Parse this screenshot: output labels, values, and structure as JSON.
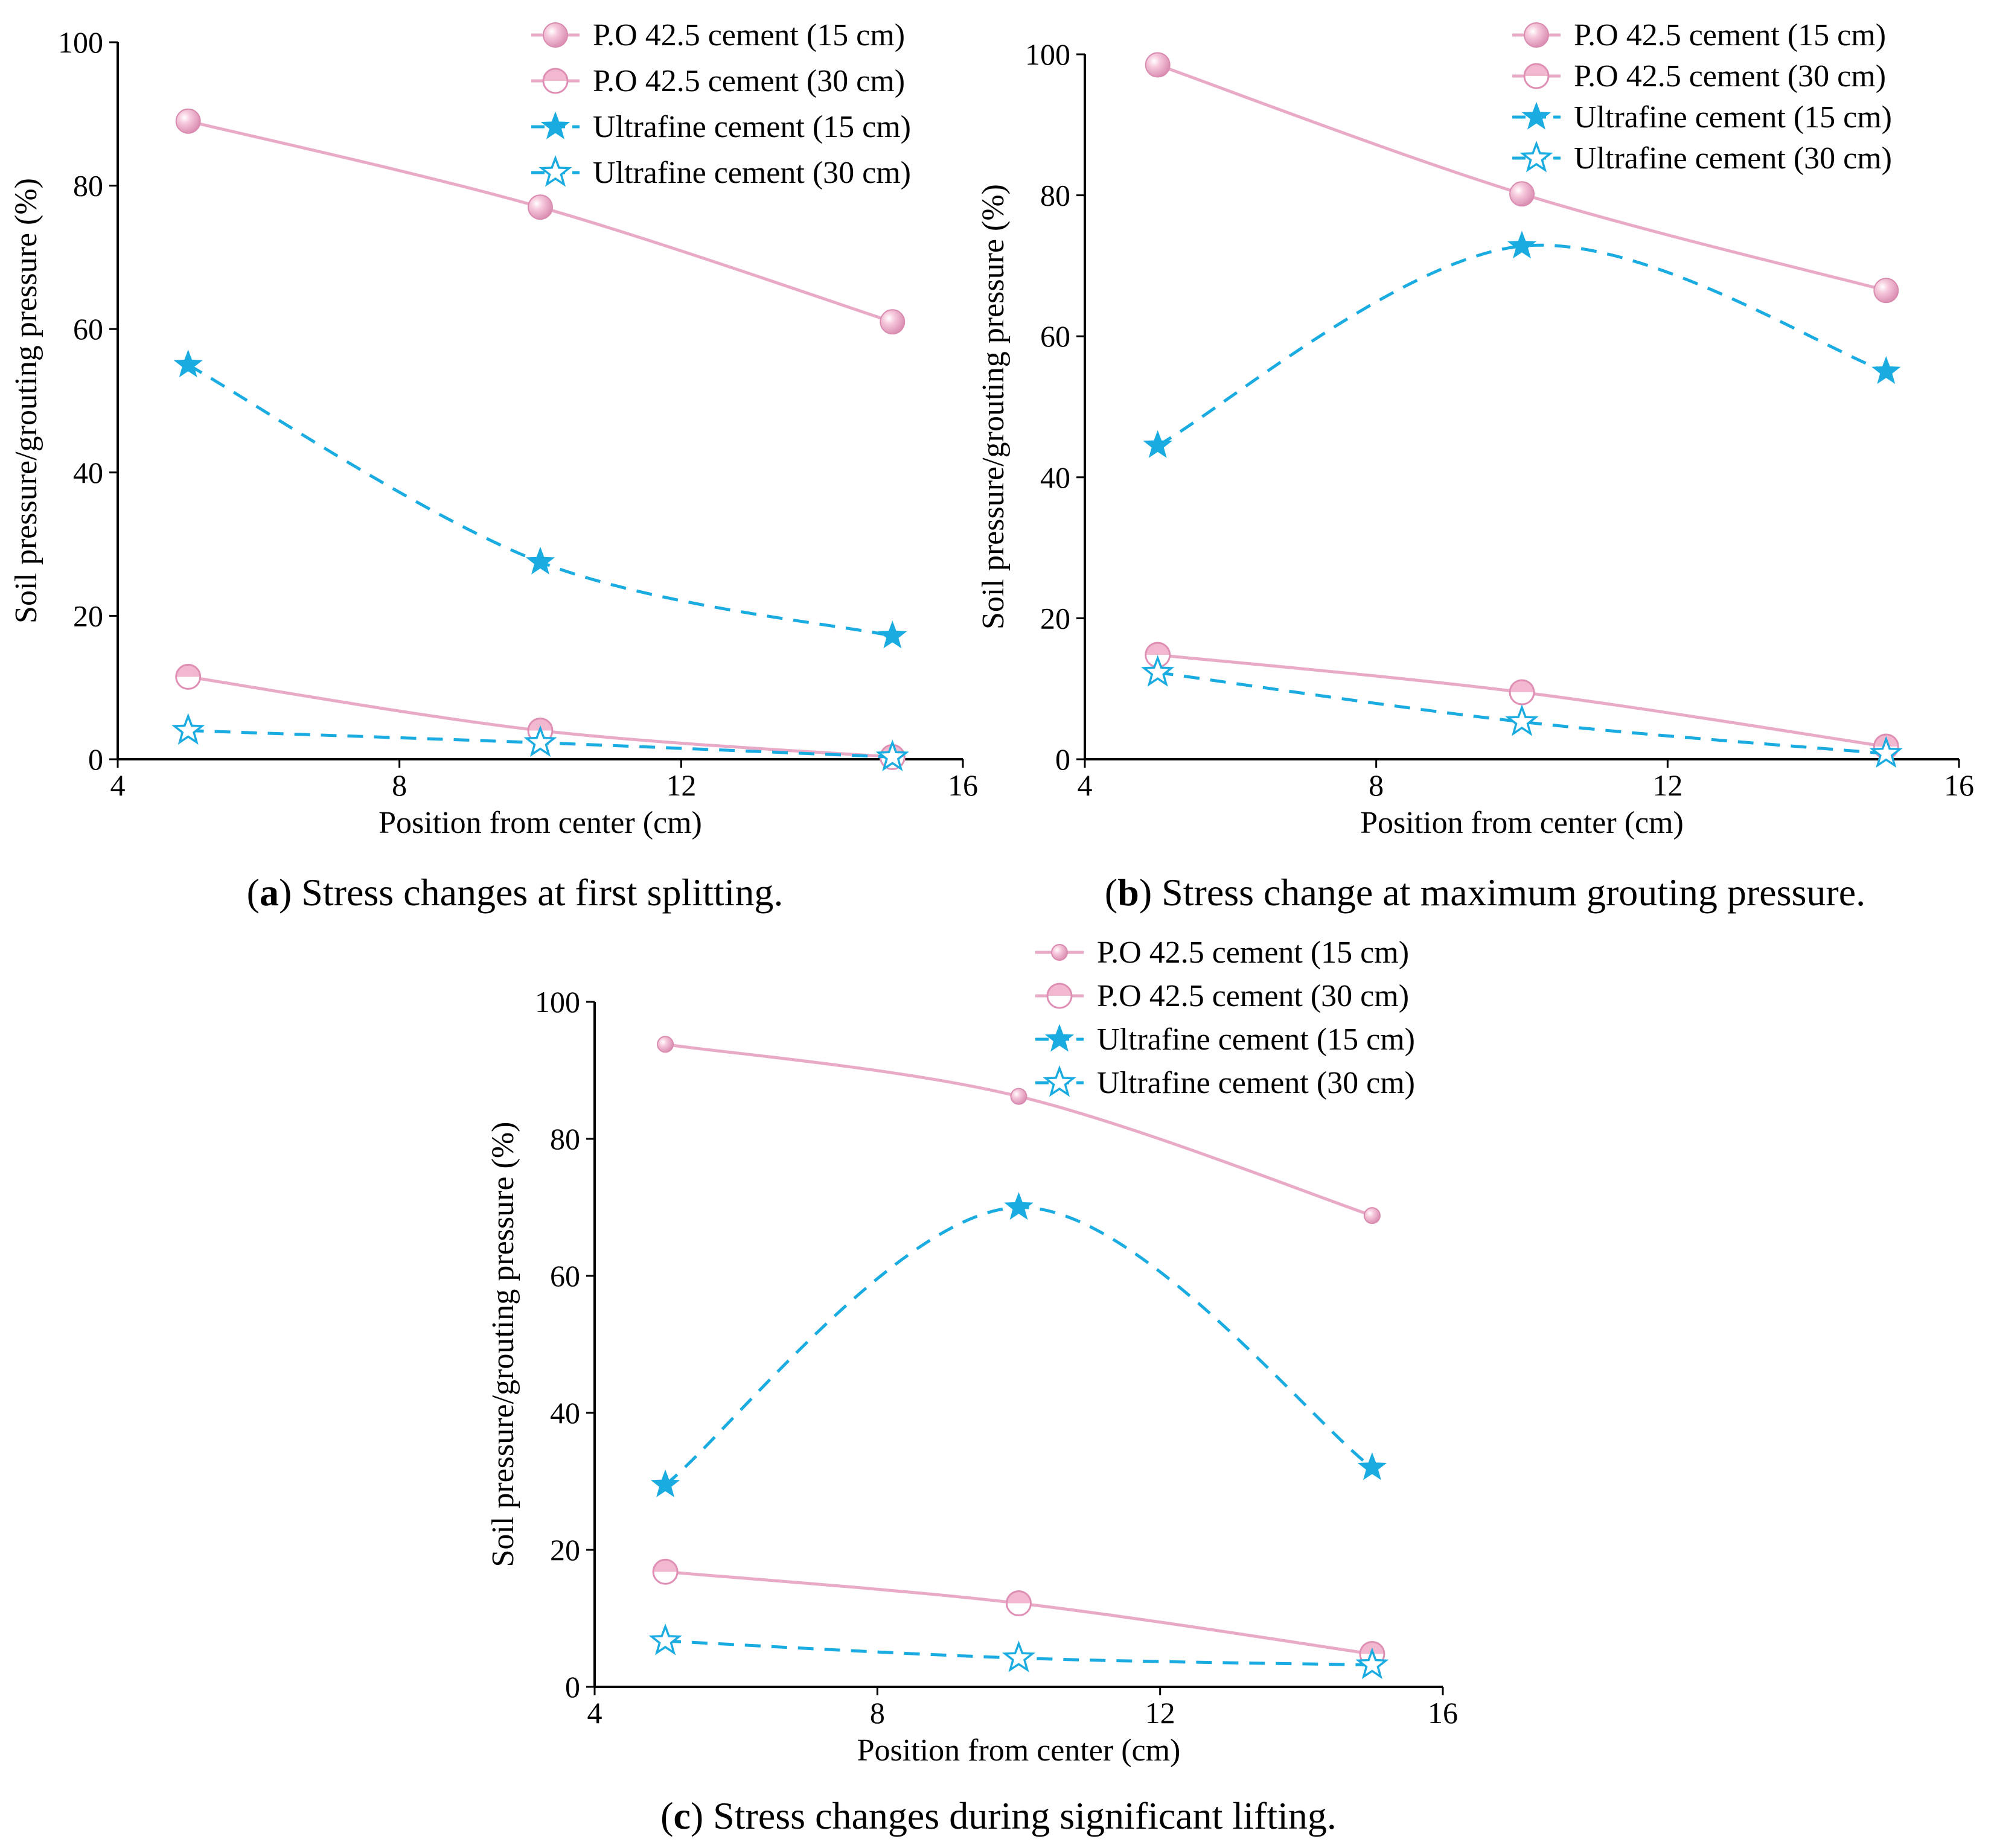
{
  "colors": {
    "pink": "#e8aac6",
    "pink_fill": "#f2b8cf",
    "blue": "#1aace0",
    "axis": "#000000"
  },
  "chart_data": [
    {
      "id": "a",
      "type": "line",
      "caption_letter": "a",
      "caption_text": "Stress changes at first splitting.",
      "xlabel": "Position from center (cm)",
      "ylabel": "Soil pressure/grouting pressure (%)",
      "xlim": [
        4,
        16
      ],
      "ylim": [
        0,
        100
      ],
      "xticks": [
        4,
        8,
        12,
        16
      ],
      "yticks": [
        0,
        20,
        40,
        60,
        80,
        100
      ],
      "x": [
        5,
        10,
        15
      ],
      "legend_position": "top-right",
      "series": [
        {
          "name": "P.O 42.5 cement (15 cm)",
          "values": [
            89,
            77,
            61
          ],
          "style": "pink-solid",
          "marker": "ball"
        },
        {
          "name": "P.O 42.5 cement (30 cm)",
          "values": [
            11.5,
            4,
            0.3
          ],
          "style": "pink-solid",
          "marker": "halfball"
        },
        {
          "name": "Ultrafine cement (15 cm)",
          "values": [
            55,
            27.5,
            17.2
          ],
          "style": "blue-dash",
          "marker": "star"
        },
        {
          "name": "Ultrafine cement (30 cm)",
          "values": [
            4,
            2.3,
            0.3
          ],
          "style": "blue-dash",
          "marker": "star-open"
        }
      ]
    },
    {
      "id": "b",
      "type": "line",
      "caption_letter": "b",
      "caption_text": "Stress change at maximum grouting pressure.",
      "xlabel": "Position from center (cm)",
      "ylabel": "Soil pressure/grouting pressure (%)",
      "xlim": [
        4,
        16
      ],
      "ylim": [
        0,
        100
      ],
      "xticks": [
        4,
        8,
        12,
        16
      ],
      "yticks": [
        0,
        20,
        40,
        60,
        80,
        100
      ],
      "x": [
        5,
        10,
        15
      ],
      "legend_position": "top-right",
      "series": [
        {
          "name": "P.O 42.5 cement (15 cm)",
          "values": [
            98.5,
            80.2,
            66.5
          ],
          "style": "pink-solid",
          "marker": "ball"
        },
        {
          "name": "P.O 42.5 cement (30 cm)",
          "values": [
            14.8,
            9.5,
            1.8
          ],
          "style": "pink-solid",
          "marker": "halfball"
        },
        {
          "name": "Ultrafine cement (15 cm)",
          "values": [
            44.5,
            72.8,
            55
          ],
          "style": "blue-dash",
          "marker": "star"
        },
        {
          "name": "Ultrafine cement (30 cm)",
          "values": [
            12.3,
            5.3,
            0.8
          ],
          "style": "blue-dash",
          "marker": "star-open"
        }
      ]
    },
    {
      "id": "c",
      "type": "line",
      "caption_letter": "c",
      "caption_text": "Stress changes during significant lifting.",
      "xlabel": "Position from center (cm)",
      "ylabel": "Soil pressure/grouting pressure (%)",
      "xlim": [
        4,
        16
      ],
      "ylim": [
        0,
        100
      ],
      "xticks": [
        4,
        8,
        12,
        16
      ],
      "yticks": [
        0,
        20,
        40,
        60,
        80,
        100
      ],
      "x": [
        5,
        10,
        15
      ],
      "legend_position": "top-right",
      "series": [
        {
          "name": "P.O 42.5 cement (15 cm)",
          "values": [
            93.8,
            86.2,
            68.8
          ],
          "style": "pink-solid",
          "marker": "ball-small"
        },
        {
          "name": "P.O 42.5 cement (30 cm)",
          "values": [
            16.8,
            12.2,
            4.8
          ],
          "style": "pink-solid",
          "marker": "halfball"
        },
        {
          "name": "Ultrafine cement (15 cm)",
          "values": [
            29.5,
            70,
            32
          ],
          "style": "blue-dash",
          "marker": "star"
        },
        {
          "name": "Ultrafine cement (30 cm)",
          "values": [
            6.7,
            4.2,
            3.2
          ],
          "style": "blue-dash",
          "marker": "star-open"
        }
      ]
    }
  ]
}
